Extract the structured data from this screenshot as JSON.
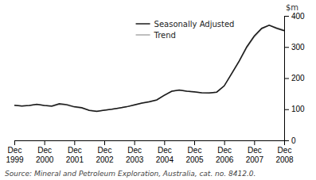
{
  "chart_data": {
    "type": "line",
    "y_label": "$m",
    "source": "Source: Mineral and Petroleum Exploration, Australia, cat. no. 8412.0.",
    "categories": [
      "Dec\n1999",
      null,
      null,
      null,
      "Dec\n2000",
      null,
      null,
      null,
      "Dec\n2001",
      null,
      null,
      null,
      "Dec\n2002",
      null,
      null,
      null,
      "Dec\n2003",
      null,
      null,
      null,
      "Dec\n2004",
      null,
      null,
      null,
      "Dec\n2005",
      null,
      null,
      null,
      "Dec\n2006",
      null,
      null,
      null,
      "Dec\n2007",
      null,
      null,
      null,
      "Dec\n2008"
    ],
    "series": [
      {
        "name": "Seasonally Adjusted",
        "color": "#1a1a1a",
        "values": [
          113,
          110,
          112,
          116,
          112,
          110,
          118,
          115,
          108,
          105,
          96,
          93,
          97,
          100,
          104,
          108,
          114,
          120,
          124,
          130,
          145,
          158,
          162,
          158,
          156,
          153,
          152,
          155,
          175,
          215,
          255,
          300,
          335,
          360,
          370,
          360,
          352
        ]
      },
      {
        "name": "Trend",
        "color": "#aaaaaa",
        "values": [
          113,
          111,
          112,
          115,
          112,
          109,
          115,
          113,
          107,
          103,
          97,
          94,
          97,
          100,
          104,
          108,
          113,
          119,
          123,
          129,
          144,
          157,
          161,
          158,
          155,
          153,
          152,
          155,
          175,
          213,
          253,
          297,
          332,
          358,
          370,
          362,
          355
        ]
      }
    ],
    "ylim": [
      0,
      400
    ],
    "yticks": [
      0,
      100,
      200,
      300,
      400
    ],
    "grid": false,
    "legend": "top"
  }
}
